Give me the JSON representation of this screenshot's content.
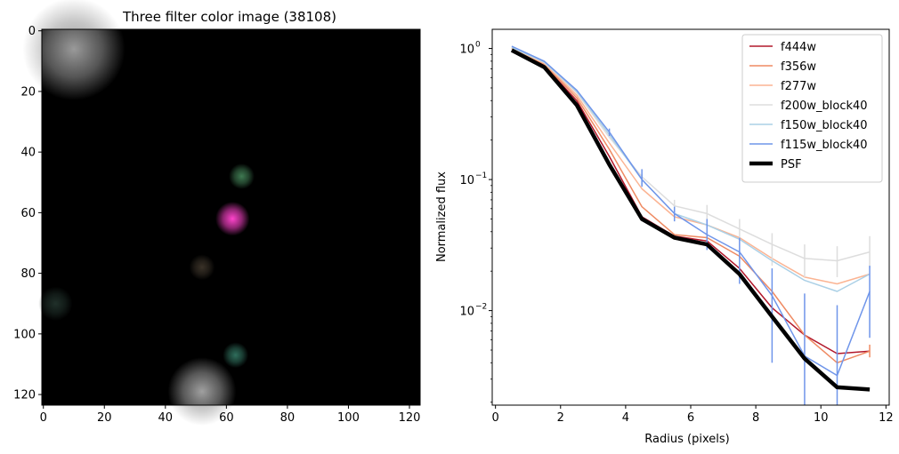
{
  "chart_data": [
    {
      "type": "heatmap",
      "title": "Three filter color image (38108)",
      "xlabel": "",
      "ylabel": "",
      "xlim": [
        -0.5,
        123.5
      ],
      "ylim": [
        123.5,
        -0.5
      ],
      "x_ticks": [
        0,
        20,
        40,
        60,
        80,
        100,
        120
      ],
      "y_ticks": [
        0,
        20,
        40,
        60,
        80,
        100,
        120
      ],
      "background": "#000000",
      "sources": [
        {
          "x": 62,
          "y": 62,
          "r": 4,
          "color": "#ff44cc"
        },
        {
          "x": 65,
          "y": 48,
          "r": 3,
          "color": "#3f7a52"
        },
        {
          "x": 63,
          "y": 107,
          "r": 3,
          "color": "#2f6e5c"
        },
        {
          "x": 10,
          "y": 6,
          "r": 12,
          "color": "#9a9a9a"
        },
        {
          "x": 52,
          "y": 119,
          "r": 8,
          "color": "#a0a0a0"
        },
        {
          "x": 52,
          "y": 78,
          "r": 3,
          "color": "#3a3228"
        },
        {
          "x": 4,
          "y": 90,
          "r": 4,
          "color": "#20302a"
        }
      ]
    },
    {
      "type": "line",
      "title": "",
      "xlabel": "Radius (pixels)",
      "ylabel": "Normalized flux",
      "yscale": "log",
      "xlim": [
        -0.1,
        12.1
      ],
      "ylim": [
        0.0019,
        1.4
      ],
      "x_ticks": [
        0,
        2,
        4,
        6,
        8,
        10,
        12
      ],
      "y_ticks": [
        {
          "value": 0.01,
          "label": "10",
          "exp": "−2"
        },
        {
          "value": 0.1,
          "label": "10",
          "exp": "−1"
        },
        {
          "value": 1,
          "label": "10",
          "exp": "0"
        }
      ],
      "legend_position": "top-right",
      "x": [
        0.5,
        1.5,
        2.5,
        3.5,
        4.5,
        5.5,
        6.5,
        7.5,
        8.5,
        9.5,
        10.5,
        11.5
      ],
      "series": [
        {
          "name": "f444w",
          "color": "#b2182b",
          "width": 1.5,
          "values": [
            1.0,
            0.74,
            0.4,
            0.15,
            0.052,
            0.037,
            0.034,
            0.021,
            0.0105,
            0.0065,
            0.0047,
            0.0049
          ],
          "errors": []
        },
        {
          "name": "f356w",
          "color": "#ef8a62",
          "width": 1.5,
          "values": [
            1.0,
            0.76,
            0.42,
            0.17,
            0.062,
            0.038,
            0.036,
            0.026,
            0.014,
            0.0065,
            0.004,
            0.0049
          ],
          "errors": [
            {
              "i": 11,
              "lo": 0.0044,
              "hi": 0.0055
            }
          ]
        },
        {
          "name": "f277w",
          "color": "#fbb493",
          "width": 1.5,
          "values": [
            1.0,
            0.77,
            0.44,
            0.19,
            0.085,
            0.052,
            0.045,
            0.036,
            0.025,
            0.018,
            0.016,
            0.019
          ],
          "errors": []
        },
        {
          "name": "f200w_block40",
          "color": "#dddddd",
          "width": 1.5,
          "values": [
            1.02,
            0.78,
            0.46,
            0.21,
            0.105,
            0.063,
            0.055,
            0.042,
            0.032,
            0.025,
            0.024,
            0.028
          ],
          "errors": [
            {
              "i": 5,
              "lo": 0.053,
              "hi": 0.07
            },
            {
              "i": 6,
              "lo": 0.046,
              "hi": 0.064
            },
            {
              "i": 7,
              "lo": 0.035,
              "hi": 0.05
            },
            {
              "i": 8,
              "lo": 0.022,
              "hi": 0.039
            },
            {
              "i": 9,
              "lo": 0.018,
              "hi": 0.032
            },
            {
              "i": 10,
              "lo": 0.018,
              "hi": 0.031
            },
            {
              "i": 11,
              "lo": 0.021,
              "hi": 0.037
            }
          ]
        },
        {
          "name": "f150w_block40",
          "color": "#abd0e6",
          "width": 1.5,
          "values": [
            1.02,
            0.79,
            0.47,
            0.22,
            0.1,
            0.055,
            0.045,
            0.035,
            0.024,
            0.017,
            0.014,
            0.019
          ],
          "errors": [
            {
              "i": 4,
              "lo": 0.09,
              "hi": 0.11
            },
            {
              "i": 5,
              "lo": 0.048,
              "hi": 0.062
            }
          ]
        },
        {
          "name": "f115w_block40",
          "color": "#6f95ea",
          "width": 1.5,
          "values": [
            1.04,
            0.8,
            0.48,
            0.23,
            0.1,
            0.055,
            0.038,
            0.028,
            0.013,
            0.0045,
            0.0032,
            0.014
          ],
          "errors": [
            {
              "i": 3,
              "lo": 0.215,
              "hi": 0.245
            },
            {
              "i": 4,
              "lo": 0.088,
              "hi": 0.12
            },
            {
              "i": 5,
              "lo": 0.048,
              "hi": 0.062
            },
            {
              "i": 6,
              "lo": 0.029,
              "hi": 0.05
            },
            {
              "i": 7,
              "lo": 0.016,
              "hi": 0.036
            },
            {
              "i": 8,
              "lo": 0.004,
              "hi": 0.021
            },
            {
              "i": 9,
              "lo": 0.0019,
              "hi": 0.0135
            },
            {
              "i": 10,
              "lo": 0.0019,
              "hi": 0.011
            },
            {
              "i": 11,
              "lo": 0.0062,
              "hi": 0.022
            }
          ]
        },
        {
          "name": "PSF",
          "color": "#000000",
          "width": 4.5,
          "values": [
            0.97,
            0.72,
            0.37,
            0.13,
            0.05,
            0.036,
            0.032,
            0.019,
            0.009,
            0.0043,
            0.0026,
            0.0025
          ],
          "errors": []
        }
      ]
    }
  ]
}
